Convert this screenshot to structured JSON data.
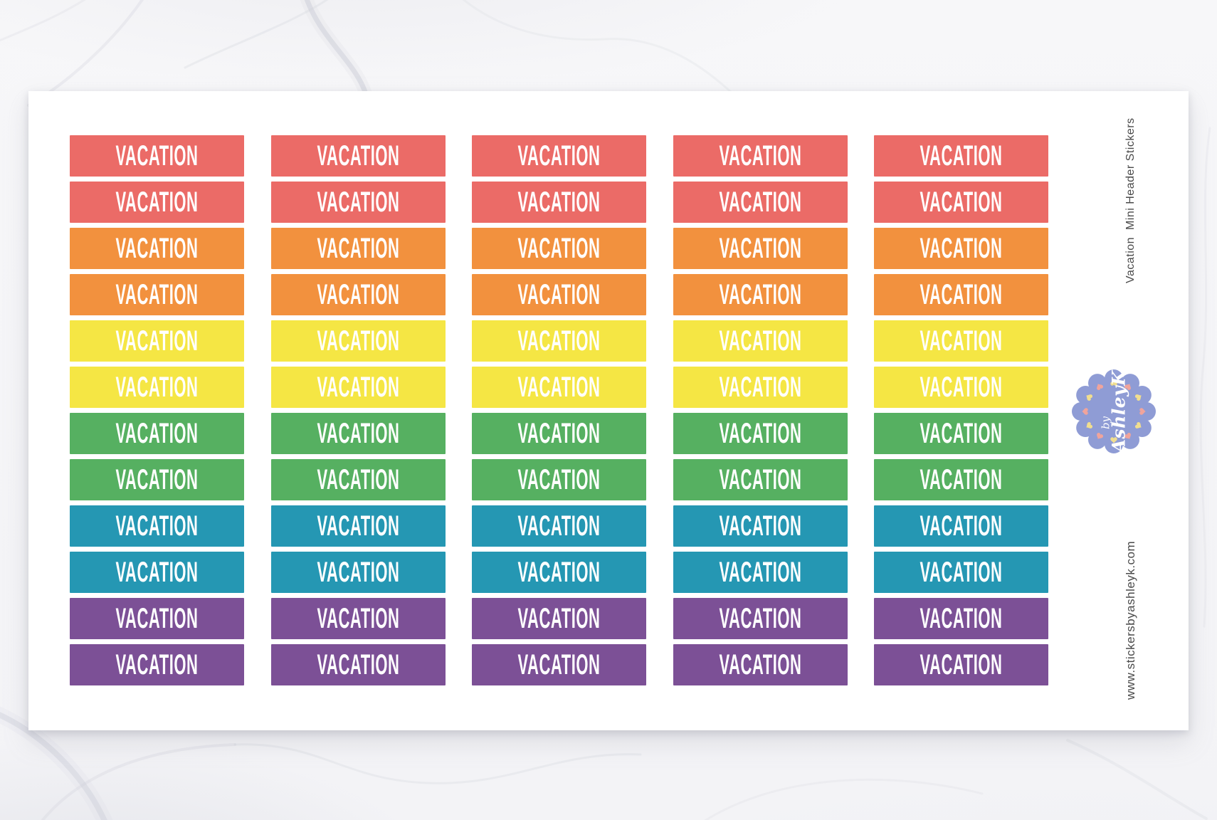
{
  "sheet": {
    "sticker_label": "VACATION",
    "grid": {
      "columns": 5,
      "rows": 12,
      "row_colors": [
        "coral",
        "coral",
        "orange",
        "orange",
        "yellow",
        "yellow",
        "green",
        "green",
        "teal",
        "teal",
        "purple",
        "purple"
      ]
    },
    "side_label_top": "Vacation  Mini Header Stickers",
    "side_label_bottom": "www.stickersbyashleyk.com",
    "badge": {
      "line1": "by",
      "line2": "AshleyK"
    }
  },
  "colors": {
    "coral": "#EB6B67",
    "orange": "#F2913E",
    "yellow": "#F5E644",
    "green": "#56B061",
    "teal": "#2597B3",
    "purple": "#7C5096",
    "badge_fill": "#8F9CD5",
    "heart_yellow": "#F1DE8F",
    "heart_pink": "#F0A49C",
    "side_text": "#4A4A4A",
    "sheet_white": "#FFFFFF"
  }
}
